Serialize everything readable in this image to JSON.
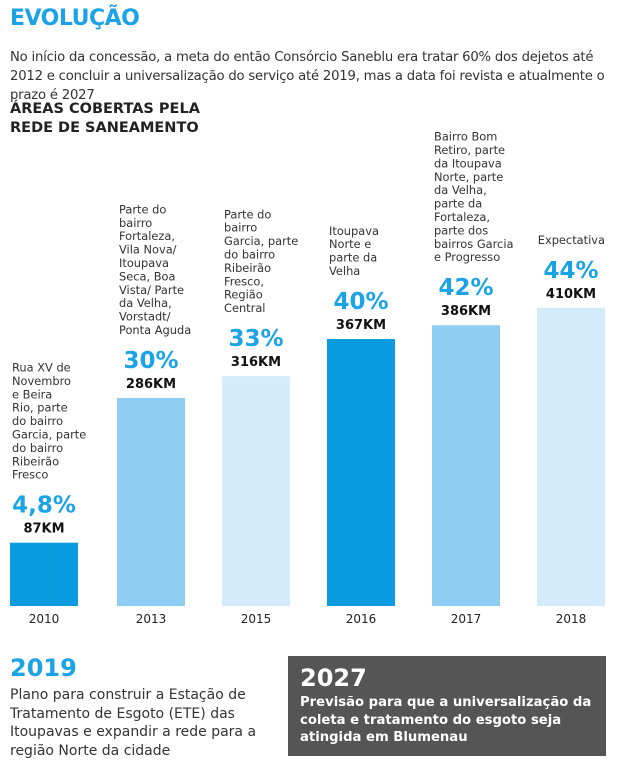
{
  "title": "EVOLUÇÃO",
  "intro": "No início da concessão, a meta do então Consórcio Saneblu era tratar 60% dos dejetos até 2012 e concluir a universalização do serviço até 2019, mas a data foi revista e atualmente o prazo é 2027",
  "chart_data": {
    "type": "bar",
    "title": "ÁREAS COBERTAS PELA REDE DE SANEAMENTO",
    "xlabel": "",
    "ylabel": "",
    "categories": [
      "2010",
      "2013",
      "2015",
      "2016",
      "2017",
      "2018"
    ],
    "values": [
      4.8,
      30,
      33,
      40,
      42,
      44
    ],
    "value_labels": [
      "4,8%",
      "30%",
      "33%",
      "40%",
      "42%",
      "44%"
    ],
    "km": [
      87,
      286,
      316,
      367,
      386,
      410
    ],
    "km_labels": [
      "87KM",
      "286KM",
      "316KM",
      "367KM",
      "386KM",
      "410KM"
    ],
    "descriptions": [
      [
        "Rua XV de",
        "Novembro",
        "e Beira",
        "Rio, parte",
        "do bairro",
        "Garcia, parte",
        "do bairro",
        "Ribeirão",
        "Fresco"
      ],
      [
        "Parte do",
        "bairro",
        "Fortaleza,",
        "Vila Nova/",
        "Itoupava",
        "Seca, Boa",
        "Vista/ Parte",
        "da Velha,",
        "Vorstadt/",
        "Ponta Aguda"
      ],
      [
        "Parte do",
        "bairro",
        "Garcia, parte",
        "do bairro",
        "Ribeirão",
        "Fresco,",
        "Região",
        "Central"
      ],
      [
        "Itoupava",
        "Norte e",
        "parte da",
        "Velha"
      ],
      [
        "Bairro Bom",
        "Retiro, parte",
        "da Itoupava",
        "Norte, parte",
        "da Velha,",
        "parte da",
        "Fortaleza,",
        "parte dos",
        "bairros Garcia",
        "e Progresso"
      ],
      [
        "Expectativa"
      ]
    ],
    "bar_colors": [
      "#0a9be0",
      "#8fcdf2",
      "#d3ebfa",
      "#0a9be0",
      "#8fcdf2",
      "#d3ebfa"
    ],
    "grid": false,
    "legend": "none"
  },
  "footer_left": {
    "year": "2019",
    "text": "Plano para construir a Estação de Tratamento de Esgoto (ETE) das Itoupavas e expandir a rede para a região Norte da cidade"
  },
  "footer_right": {
    "year": "2027",
    "text": "Previsão para que a universalização da coleta e tratamento do esgoto seja atingida em Blumenau"
  },
  "colors": {
    "accent": "#1aa3e6",
    "footer_box": "#555555"
  }
}
